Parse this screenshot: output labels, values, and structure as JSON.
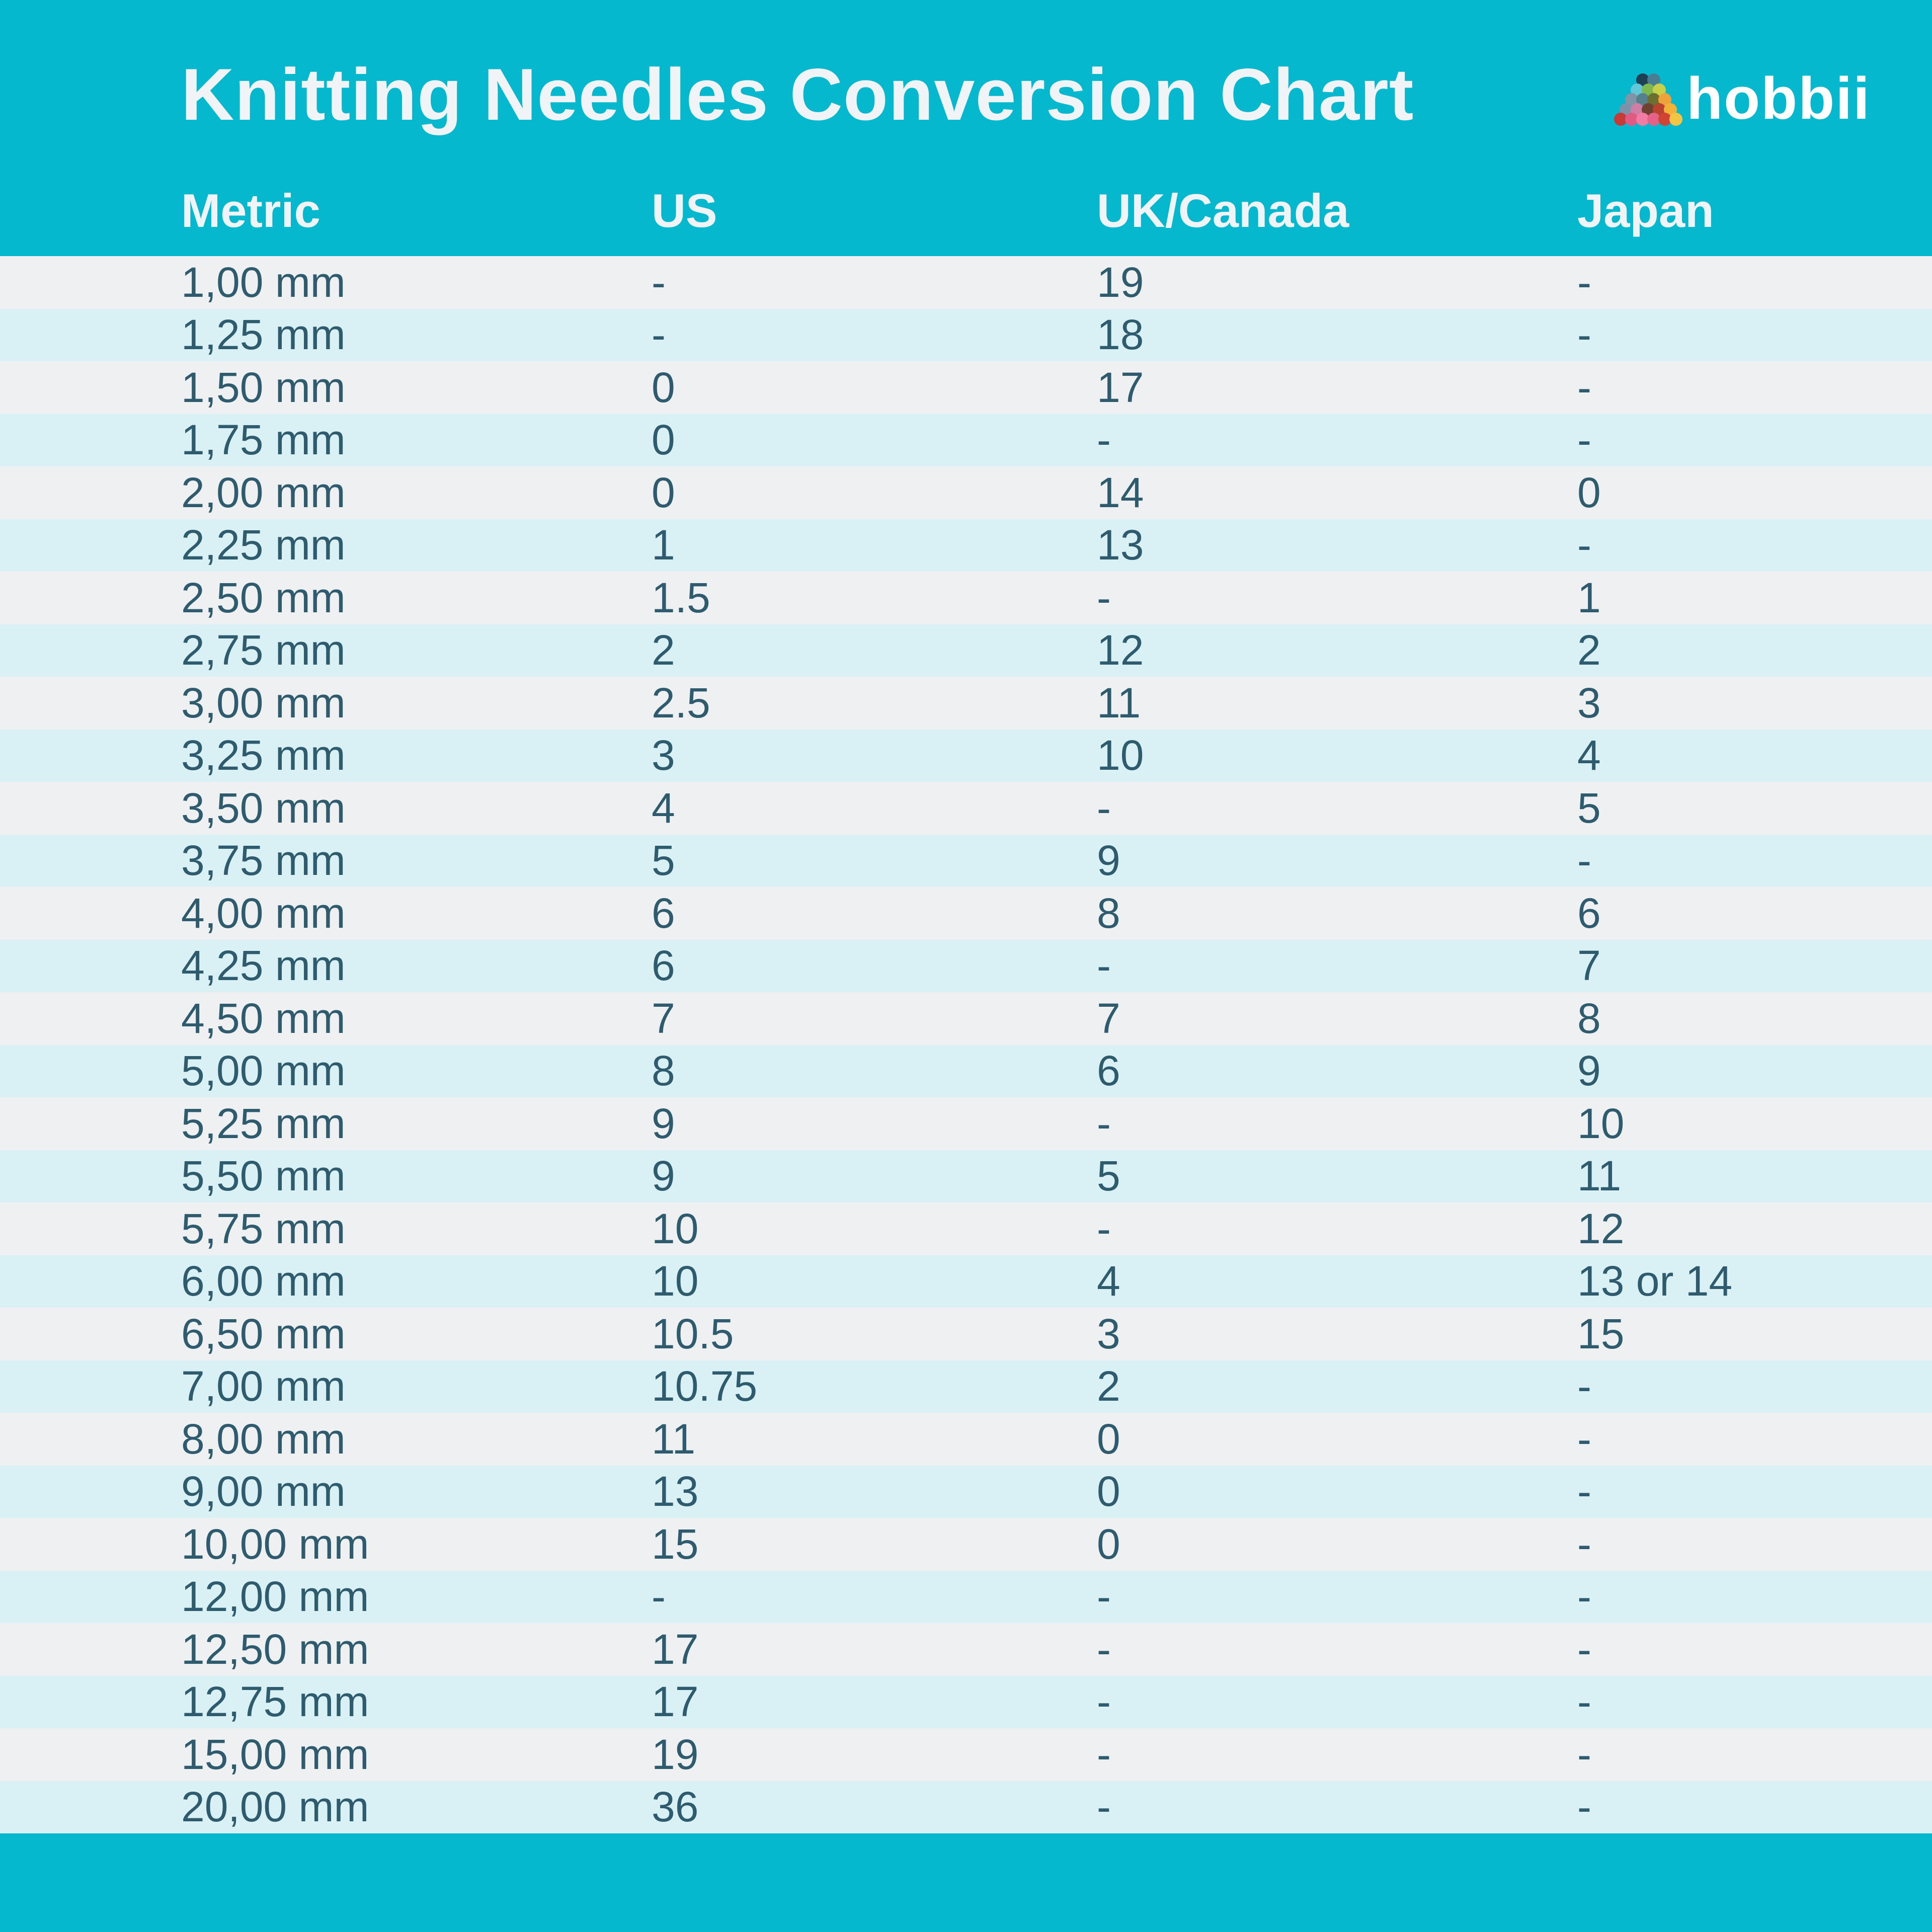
{
  "title": "Knitting Needles Conversion Chart",
  "brand": {
    "name": "hobbii",
    "logo_rows": [
      [
        "#1f3f54",
        "#4a7d92"
      ],
      [
        "#62c8d8",
        "#7fb94e",
        "#c8cf49"
      ],
      [
        "#8195a8",
        "#57808d",
        "#6b6f2f",
        "#f0a23a"
      ],
      [
        "#7d92a9",
        "#cf7fa5",
        "#6e4130",
        "#b8432e",
        "#f3b13a"
      ],
      [
        "#c63a3a",
        "#e05a84",
        "#f27ba4",
        "#e46188",
        "#cf4433",
        "#f3c545"
      ]
    ]
  },
  "table": {
    "columns": [
      "Metric",
      "US",
      "UK/Canada",
      "Japan"
    ],
    "rows": [
      [
        "1,00 mm",
        "-",
        "19",
        "-"
      ],
      [
        "1,25 mm",
        "-",
        "18",
        "-"
      ],
      [
        "1,50 mm",
        "0",
        "17",
        "-"
      ],
      [
        "1,75 mm",
        "0",
        "-",
        "-"
      ],
      [
        "2,00 mm",
        "0",
        "14",
        "0"
      ],
      [
        "2,25 mm",
        "1",
        "13",
        "-"
      ],
      [
        "2,50 mm",
        "1.5",
        "-",
        "1"
      ],
      [
        "2,75 mm",
        "2",
        "12",
        "2"
      ],
      [
        "3,00 mm",
        "2.5",
        "11",
        "3"
      ],
      [
        "3,25 mm",
        "3",
        "10",
        "4"
      ],
      [
        "3,50 mm",
        "4",
        "-",
        "5"
      ],
      [
        "3,75 mm",
        "5",
        "9",
        "-"
      ],
      [
        "4,00 mm",
        "6",
        "8",
        "6"
      ],
      [
        "4,25 mm",
        "6",
        "-",
        "7"
      ],
      [
        "4,50 mm",
        "7",
        "7",
        "8"
      ],
      [
        "5,00 mm",
        "8",
        "6",
        "9"
      ],
      [
        "5,25 mm",
        "9",
        "-",
        "10"
      ],
      [
        "5,50 mm",
        "9",
        "5",
        "11"
      ],
      [
        "5,75 mm",
        "10",
        "-",
        "12"
      ],
      [
        "6,00 mm",
        "10",
        "4",
        "13 or 14"
      ],
      [
        "6,50 mm",
        "10.5",
        "3",
        "15"
      ],
      [
        "7,00 mm",
        "10.75",
        "2",
        "-"
      ],
      [
        "8,00 mm",
        "11",
        "0",
        "-"
      ],
      [
        "9,00 mm",
        "13",
        "0",
        "-"
      ],
      [
        "10,00 mm",
        "15",
        "0",
        "-"
      ],
      [
        "12,00 mm",
        "-",
        "-",
        "-"
      ],
      [
        "12,50 mm",
        "17",
        "-",
        "-"
      ],
      [
        "12,75 mm",
        "17",
        "-",
        "-"
      ],
      [
        "15,00 mm",
        "19",
        "-",
        "-"
      ],
      [
        "20,00 mm",
        "36",
        "-",
        "-"
      ]
    ]
  },
  "colors": {
    "band_teal": "#06b8ce",
    "row_gray": "#eff0f2",
    "row_cyan": "#d9f1f5",
    "text_dark": "#2e5b6d",
    "text_light": "#f1f4f6"
  },
  "chart_data": {
    "type": "table",
    "title": "Knitting Needles Conversion Chart",
    "columns": [
      "Metric",
      "US",
      "UK/Canada",
      "Japan"
    ],
    "rows": [
      [
        "1,00 mm",
        "-",
        "19",
        "-"
      ],
      [
        "1,25 mm",
        "-",
        "18",
        "-"
      ],
      [
        "1,50 mm",
        "0",
        "17",
        "-"
      ],
      [
        "1,75 mm",
        "0",
        "-",
        "-"
      ],
      [
        "2,00 mm",
        "0",
        "14",
        "0"
      ],
      [
        "2,25 mm",
        "1",
        "13",
        "-"
      ],
      [
        "2,50 mm",
        "1.5",
        "-",
        "1"
      ],
      [
        "2,75 mm",
        "2",
        "12",
        "2"
      ],
      [
        "3,00 mm",
        "2.5",
        "11",
        "3"
      ],
      [
        "3,25 mm",
        "3",
        "10",
        "4"
      ],
      [
        "3,50 mm",
        "4",
        "-",
        "5"
      ],
      [
        "3,75 mm",
        "5",
        "9",
        "-"
      ],
      [
        "4,00 mm",
        "6",
        "8",
        "6"
      ],
      [
        "4,25 mm",
        "6",
        "-",
        "7"
      ],
      [
        "4,50 mm",
        "7",
        "7",
        "8"
      ],
      [
        "5,00 mm",
        "8",
        "6",
        "9"
      ],
      [
        "5,25 mm",
        "9",
        "-",
        "10"
      ],
      [
        "5,50 mm",
        "9",
        "5",
        "11"
      ],
      [
        "5,75 mm",
        "10",
        "-",
        "12"
      ],
      [
        "6,00 mm",
        "10",
        "4",
        "13 or 14"
      ],
      [
        "6,50 mm",
        "10.5",
        "3",
        "15"
      ],
      [
        "7,00 mm",
        "10.75",
        "2",
        "-"
      ],
      [
        "8,00 mm",
        "11",
        "0",
        "-"
      ],
      [
        "9,00 mm",
        "13",
        "0",
        "-"
      ],
      [
        "10,00 mm",
        "15",
        "0",
        "-"
      ],
      [
        "12,00 mm",
        "-",
        "-",
        "-"
      ],
      [
        "12,50 mm",
        "17",
        "-",
        "-"
      ],
      [
        "12,75 mm",
        "17",
        "-",
        "-"
      ],
      [
        "15,00 mm",
        "19",
        "-",
        "-"
      ],
      [
        "20,00 mm",
        "36",
        "-",
        "-"
      ]
    ]
  }
}
